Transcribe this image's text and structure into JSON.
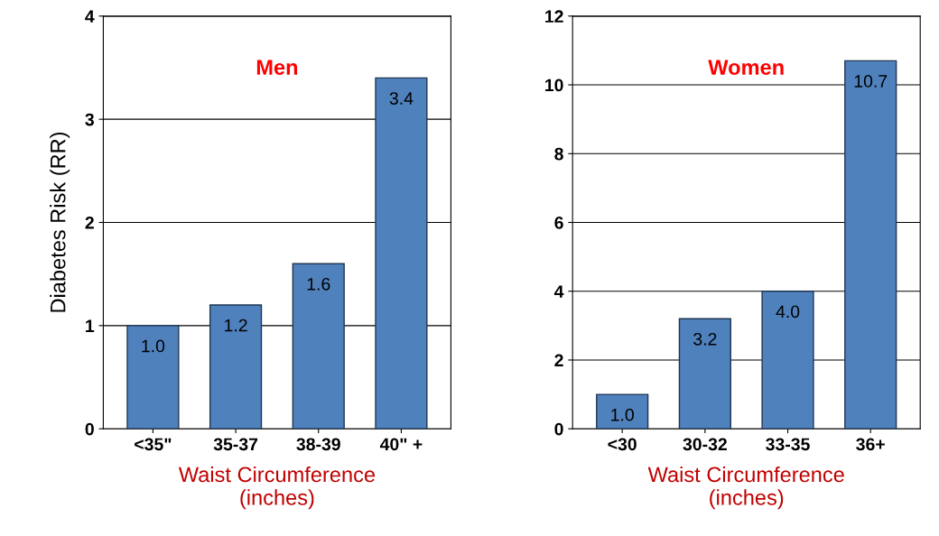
{
  "chart_data": [
    {
      "type": "bar",
      "title": "Men",
      "ylabel": "Diabetes Risk (RR)",
      "xlabel": "Waist Circumference\n(inches)",
      "categories": [
        "<35\"",
        "35-37",
        "38-39",
        "40\" +"
      ],
      "values": [
        1.0,
        1.2,
        1.6,
        3.4
      ],
      "value_labels": [
        "1.0",
        "1.2",
        "1.6",
        "3.4"
      ],
      "color": "#4f81bd",
      "ylim": [
        0,
        4
      ],
      "yticks": [
        0,
        1,
        2,
        3,
        4
      ],
      "grid": "y"
    },
    {
      "type": "bar",
      "title": "Women",
      "xlabel": "Waist Circumference\n(inches)",
      "categories": [
        "<30",
        "30-32",
        "33-35",
        "36+"
      ],
      "values": [
        1.0,
        3.2,
        4.0,
        10.7
      ],
      "value_labels": [
        "1.0",
        "3.2",
        "4.0",
        "10.7"
      ],
      "color": "#4f81bd",
      "ylim": [
        0,
        12
      ],
      "yticks": [
        0,
        2,
        4,
        6,
        8,
        10,
        12
      ],
      "grid": "y"
    }
  ]
}
